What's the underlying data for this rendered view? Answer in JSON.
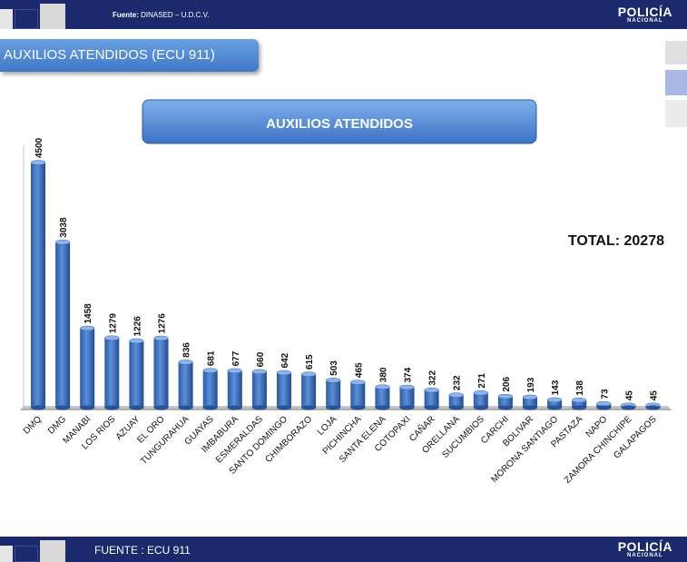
{
  "header": {
    "source_label": "Fuente:",
    "source_value": "DINASED – U.D.C.V.",
    "logo_line1": "POLICÍA",
    "logo_line2": "NACIONAL"
  },
  "slide_title": "AUXILIOS ATENDIDOS (ECU 911)",
  "total_label": "TOTAL: 20278",
  "footer": {
    "source": "FUENTE : ECU 911",
    "logo_line1": "POLICÍA",
    "logo_line2": "NACIONAL"
  },
  "colors": {
    "bar": "#3f74c2",
    "bar_dark": "#23478a",
    "header": "#1a2a6c"
  },
  "chart_data": {
    "type": "bar",
    "title": "AUXILIOS ATENDIDOS",
    "categories": [
      "DMQ",
      "DMG",
      "MANABI",
      "LOS RIOS",
      "AZUAY",
      "EL ORO",
      "TUNGURAHUA",
      "GUAYAS",
      "IMBABURA",
      "ESMERALDAS",
      "SANTO DOMINGO",
      "CHIMBORAZO",
      "LOJA",
      "PICHINCHA",
      "SANTA ELENA",
      "COTOPAXI",
      "CAÑAR",
      "ORELLANA",
      "SUCUMBIOS",
      "CARCHI",
      "BOLIVAR",
      "MORONA SANTIAGO",
      "PASTAZA",
      "NAPO",
      "ZAMORA CHINCHIPE",
      "GALAPAGOS"
    ],
    "values": [
      4500,
      3038,
      1458,
      1279,
      1226,
      1276,
      836,
      681,
      677,
      660,
      642,
      615,
      503,
      465,
      380,
      374,
      322,
      232,
      271,
      206,
      193,
      143,
      138,
      73,
      45,
      45
    ],
    "ylim": [
      0,
      4500
    ],
    "grid": false,
    "legend": "none"
  }
}
